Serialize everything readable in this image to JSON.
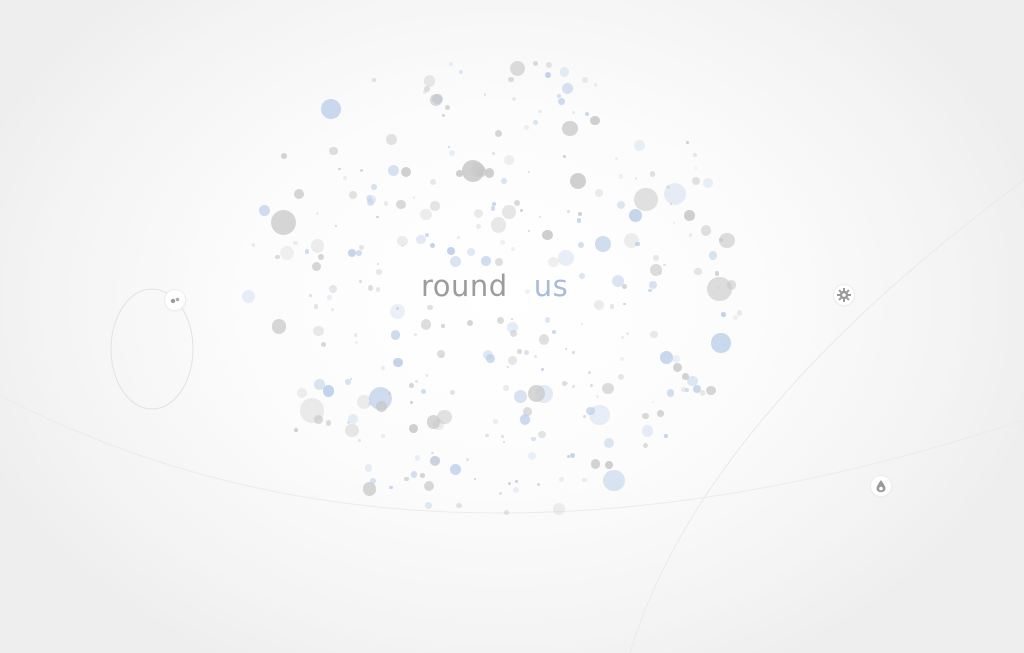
{
  "title": {
    "word1": "round",
    "word2": "us"
  },
  "colors": {
    "gray": "#c8c8c8",
    "blue": "#b9cde8",
    "gray_text": "#9c9c9c",
    "blue_text": "#a6bcd8"
  },
  "controls": {
    "left_node_icon": "planet-icon",
    "settings_icon": "gear-icon",
    "drop_icon": "droplet-icon"
  }
}
